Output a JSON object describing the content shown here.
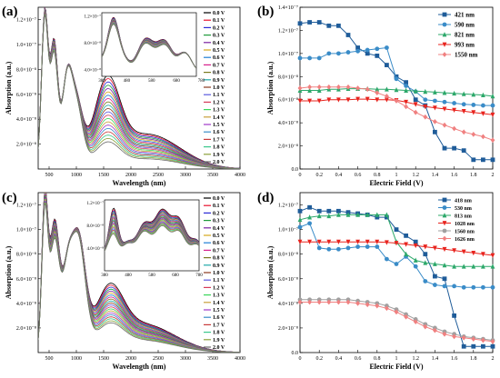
{
  "figure": {
    "panel_letters": [
      "(a)",
      "(b)",
      "(c)",
      "(d)"
    ]
  },
  "chart_data": [
    {
      "id": "a",
      "type": "line",
      "panel_letter": "(a)",
      "xlabel": "Wavelength (nm)",
      "ylabel": "Absorption (a.u.)",
      "xlim": [
        300,
        4000
      ],
      "ylim": [
        0,
        1.3e-07
      ],
      "xticks": [
        500,
        1000,
        1500,
        2000,
        2500,
        3000,
        3500,
        4000
      ],
      "yticks": [
        {
          "v": 2e-08,
          "label": "2.0×10⁻⁸"
        },
        {
          "v": 4e-08,
          "label": "4.0×10⁻⁸"
        },
        {
          "v": 6e-08,
          "label": "6.0×10⁻⁸"
        },
        {
          "v": 8e-08,
          "label": "8.0×10⁻⁸"
        },
        {
          "v": 1e-07,
          "label": "1.0×10⁻⁷"
        },
        {
          "v": 1.2e-07,
          "label": "1.2×10⁻⁷"
        }
      ],
      "legend": [
        "0.0 V",
        "0.1 V",
        "0.2 V",
        "0.3 V",
        "0.4 V",
        "0.5 V",
        "0.6 V",
        "0.7 V",
        "0.8 V",
        "0.9 V",
        "1.0 V",
        "1.1 V",
        "1.2 V",
        "1.3 V",
        "1.4 V",
        "1.5 V",
        "1.6 V",
        "1.7 V",
        "1.8 V",
        "1.9 V",
        "2.0 V"
      ],
      "legend_position": "right",
      "colors": [
        "#000000",
        "#e8112d",
        "#2b2bd6",
        "#1f9a3a",
        "#7a1fa2",
        "#d6a81c",
        "#1f7fd6",
        "#d61f8c",
        "#7a7a1f",
        "#1fa8a8",
        "#8c3a1f",
        "#5a5ae0",
        "#d63a5a",
        "#3ad65a",
        "#c8a03a",
        "#a03ac8",
        "#3a8cc8",
        "#c83a3a",
        "#3ac88c",
        "#8ca03a",
        "#6a6a6a"
      ],
      "peak_start": 6.2e-08,
      "peak_end": 1.8e-08,
      "inset": {
        "xlim": [
          380,
          760
        ],
        "ylim": [
          3e-08,
          1.25e-07
        ],
        "xticks": [
          380,
          480,
          580,
          680,
          780
        ],
        "yticks": [
          {
            "v": 4e-08,
            "label": "4.0×10⁻⁸"
          },
          {
            "v": 8e-08,
            "label": "8.0×10⁻⁸"
          },
          {
            "v": 1.2e-07,
            "label": "1.2×10⁻⁷"
          }
        ]
      }
    },
    {
      "id": "b",
      "type": "line",
      "panel_letter": "(b)",
      "xlabel": "Electric Field (V)",
      "ylabel": "Absorption (a.u.)",
      "xlim": [
        0,
        2.0
      ],
      "ylim": [
        0,
        1.4e-07
      ],
      "xticks": [
        0,
        0.2,
        0.4,
        0.6,
        0.8,
        1.0,
        1.2,
        1.4,
        1.6,
        1.8,
        2.0
      ],
      "yticks": [
        {
          "v": 0,
          "label": "0.0"
        },
        {
          "v": 2e-08,
          "label": "2.0×10⁻⁸"
        },
        {
          "v": 4e-08,
          "label": "4.0×10⁻⁸"
        },
        {
          "v": 6e-08,
          "label": "6.0×10⁻⁸"
        },
        {
          "v": 8e-08,
          "label": "8.0×10⁻⁸"
        },
        {
          "v": 1e-07,
          "label": "1.0×10⁻⁷"
        },
        {
          "v": 1.2e-07,
          "label": "1.2×10⁻⁷"
        },
        {
          "v": 1.4e-07,
          "label": "1.4×10⁻⁷"
        }
      ],
      "legend_position": "top-right",
      "x": [
        0,
        0.1,
        0.2,
        0.3,
        0.4,
        0.5,
        0.6,
        0.7,
        0.8,
        0.9,
        1.0,
        1.1,
        1.2,
        1.3,
        1.4,
        1.5,
        1.6,
        1.7,
        1.8,
        1.9,
        2.0
      ],
      "series": [
        {
          "name": "421 nm",
          "color": "#1f5c99",
          "marker": "square",
          "values": [
            1.26e-07,
            1.27e-07,
            1.27e-07,
            1.24e-07,
            1.24e-07,
            1.16e-07,
            1.05e-07,
            1e-07,
            9.8e-08,
            9e-08,
            8e-08,
            7.5e-08,
            6e-08,
            5.5e-08,
            3.2e-08,
            1.8e-08,
            1.8e-08,
            1.6e-08,
            8e-09,
            8e-09,
            8e-09
          ]
        },
        {
          "name": "590 nm",
          "color": "#3a8cc8",
          "marker": "circle",
          "values": [
            9.6e-08,
            9.6e-08,
            9.6e-08,
            1e-07,
            1e-07,
            1.01e-07,
            1.02e-07,
            1.03e-07,
            1.04e-07,
            1.05e-07,
            7.8e-08,
            7.2e-08,
            6.7e-08,
            6e-08,
            5.9e-08,
            5.8e-08,
            5.7e-08,
            5.6e-08,
            5.55e-08,
            5.5e-08,
            5.5e-08
          ]
        },
        {
          "name": "821 nm",
          "color": "#2ca86a",
          "marker": "triangle-up",
          "values": [
            6.8e-08,
            6.8e-08,
            6.8e-08,
            6.9e-08,
            6.9e-08,
            6.95e-08,
            6.95e-08,
            6.95e-08,
            6.9e-08,
            6.9e-08,
            6.85e-08,
            6.8e-08,
            6.75e-08,
            6.7e-08,
            6.65e-08,
            6.6e-08,
            6.55e-08,
            6.5e-08,
            6.45e-08,
            6.4e-08,
            6.3e-08
          ]
        },
        {
          "name": "993 nm",
          "color": "#e8231d",
          "marker": "triangle-down",
          "values": [
            5.9e-08,
            5.9e-08,
            5.9e-08,
            6e-08,
            6e-08,
            6e-08,
            6.05e-08,
            6.05e-08,
            6e-08,
            6e-08,
            5.95e-08,
            5.8e-08,
            5.6e-08,
            5.4e-08,
            5.3e-08,
            5.2e-08,
            5.1e-08,
            5e-08,
            4.9e-08,
            4.8e-08,
            4.7e-08
          ]
        },
        {
          "name": "1550 nm",
          "color": "#f08080",
          "marker": "diamond",
          "values": [
            7e-08,
            7.1e-08,
            7.1e-08,
            7.1e-08,
            7.1e-08,
            7.1e-08,
            7e-08,
            6.9e-08,
            6.6e-08,
            6.3e-08,
            5.9e-08,
            5.4e-08,
            4.9e-08,
            4.5e-08,
            4.1e-08,
            3.8e-08,
            3.5e-08,
            3.2e-08,
            3e-08,
            2.8e-08,
            2.5e-08
          ]
        }
      ]
    },
    {
      "id": "c",
      "type": "line",
      "panel_letter": "(c)",
      "xlabel": "Wavelength (nm)",
      "ylabel": "Absorption (a.u.)",
      "xlim": [
        300,
        4000
      ],
      "ylim": [
        0,
        1.3e-07
      ],
      "xticks": [
        500,
        1000,
        1500,
        2000,
        2500,
        3000,
        3500,
        4000
      ],
      "yticks": [
        {
          "v": 2e-08,
          "label": "2.0×10⁻⁸"
        },
        {
          "v": 4e-08,
          "label": "4.0×10⁻⁸"
        },
        {
          "v": 6e-08,
          "label": "6.0×10⁻⁸"
        },
        {
          "v": 8e-08,
          "label": "8.0×10⁻⁸"
        },
        {
          "v": 1e-07,
          "label": "1.0×10⁻⁷"
        },
        {
          "v": 1.2e-07,
          "label": "1.2×10⁻⁷"
        }
      ],
      "legend": [
        "0.0 V",
        "0.1 V",
        "0.2 V",
        "0.3 V",
        "0.4 V",
        "0.5 V",
        "0.6 V",
        "0.7 V",
        "0.8 V",
        "0.9 V",
        "1.0 V",
        "1.1 V",
        "1.2 V",
        "1.3 V",
        "1.4 V",
        "1.5 V",
        "1.6 V",
        "1.7 V",
        "1.8 V",
        "1.9 V",
        "2.0 V"
      ],
      "legend_position": "right",
      "colors": [
        "#000000",
        "#e8112d",
        "#2b2bd6",
        "#1f9a3a",
        "#7a1fa2",
        "#d6a81c",
        "#1f7fd6",
        "#d61f8c",
        "#7a7a1f",
        "#1fa8a8",
        "#8c3a1f",
        "#5a5ae0",
        "#d63a5a",
        "#3ad65a",
        "#c8a03a",
        "#a03ac8",
        "#3a8cc8",
        "#c83a3a",
        "#3ac88c",
        "#8ca03a",
        "#6a6a6a"
      ],
      "peak_start": 4.2e-08,
      "peak_end": 1.8e-08,
      "inset": {
        "xlim": [
          380,
          780
        ],
        "ylim": [
          0.0,
          1.25e-07
        ],
        "xticks": [
          380,
          480,
          580,
          680,
          780
        ],
        "yticks": [
          {
            "v": 4e-08,
            "label": "4.0×10⁻⁸"
          },
          {
            "v": 8e-08,
            "label": "8.0×10⁻⁸"
          },
          {
            "v": 1.2e-07,
            "label": "1.2×10⁻⁷"
          }
        ]
      }
    },
    {
      "id": "d",
      "type": "line",
      "panel_letter": "(d)",
      "xlabel": "Electric Field (V)",
      "ylabel": "Absorption (a.u.)",
      "xlim": [
        0,
        2.0
      ],
      "ylim": [
        0,
        1.3e-07
      ],
      "xticks": [
        0,
        0.2,
        0.4,
        0.6,
        0.8,
        1.0,
        1.2,
        1.4,
        1.6,
        1.8,
        2.0
      ],
      "yticks": [
        {
          "v": 0,
          "label": "0.0"
        },
        {
          "v": 2e-08,
          "label": "2.0×10⁻⁸"
        },
        {
          "v": 4e-08,
          "label": "4.0×10⁻⁸"
        },
        {
          "v": 6e-08,
          "label": "6.0×10⁻⁸"
        },
        {
          "v": 8e-08,
          "label": "8.0×10⁻⁸"
        },
        {
          "v": 1e-07,
          "label": "1.0×10⁻⁷"
        },
        {
          "v": 1.2e-07,
          "label": "1.2×10⁻⁷"
        }
      ],
      "legend_position": "top-right",
      "x": [
        0,
        0.1,
        0.2,
        0.3,
        0.4,
        0.5,
        0.6,
        0.7,
        0.8,
        0.9,
        1.0,
        1.1,
        1.2,
        1.3,
        1.4,
        1.5,
        1.6,
        1.7,
        1.8,
        1.9,
        2.0
      ],
      "series": [
        {
          "name": "418 nm",
          "color": "#1f5c99",
          "marker": "square",
          "values": [
            1.15e-07,
            1.18e-07,
            1.15e-07,
            1.15e-07,
            1.15e-07,
            1.14e-07,
            1.13e-07,
            1.12e-07,
            1.1e-07,
            1.1e-07,
            1e-07,
            9.5e-08,
            9e-08,
            8e-08,
            6.2e-08,
            6e-08,
            3e-08,
            5e-09,
            5e-09,
            5e-09,
            5e-09
          ]
        },
        {
          "name": "530 nm",
          "color": "#3a8cc8",
          "marker": "circle",
          "values": [
            1.02e-07,
            1.05e-07,
            8.5e-08,
            8.4e-08,
            8.4e-08,
            8.5e-08,
            8.6e-08,
            8.6e-08,
            8.6e-08,
            7.6e-08,
            7.2e-08,
            7.8e-08,
            7e-08,
            5.8e-08,
            5.5e-08,
            5.4e-08,
            5.4e-08,
            5.3e-08,
            5.3e-08,
            5.3e-08,
            5.3e-08
          ]
        },
        {
          "name": "813 nm",
          "color": "#2ca86a",
          "marker": "triangle-up",
          "values": [
            1.08e-07,
            1.1e-07,
            1.11e-07,
            1.11e-07,
            1.12e-07,
            1.12e-07,
            1.12e-07,
            1.12e-07,
            1.12e-07,
            1.12e-07,
            9e-08,
            8e-08,
            7.5e-08,
            7.3e-08,
            7.2e-08,
            7.1e-08,
            7e-08,
            7e-08,
            7e-08,
            7e-08,
            7e-08
          ]
        },
        {
          "name": "1028 nm",
          "color": "#e8231d",
          "marker": "triangle-down",
          "values": [
            9e-08,
            9e-08,
            9e-08,
            9e-08,
            9e-08,
            9e-08,
            9e-08,
            9e-08,
            9e-08,
            8.95e-08,
            8.9e-08,
            8.8e-08,
            8.7e-08,
            8.6e-08,
            8.5e-08,
            8.4e-08,
            8.3e-08,
            8.2e-08,
            8.1e-08,
            8e-08,
            7.9e-08
          ]
        },
        {
          "name": "1560 nm",
          "color": "#a0a0a0",
          "marker": "circle",
          "values": [
            4.3e-08,
            4.3e-08,
            4.3e-08,
            4.3e-08,
            4.3e-08,
            4.3e-08,
            4.2e-08,
            4.1e-08,
            4e-08,
            3.8e-08,
            3.5e-08,
            3.1e-08,
            2.7e-08,
            2.3e-08,
            2e-08,
            1.7e-08,
            1.5e-08,
            1.3e-08,
            1.2e-08,
            1.1e-08,
            1e-08
          ]
        },
        {
          "name": "1626 nm",
          "color": "#f08080",
          "marker": "diamond",
          "values": [
            4.1e-08,
            4.1e-08,
            4.1e-08,
            4.1e-08,
            4.1e-08,
            4.1e-08,
            4e-08,
            3.9e-08,
            3.8e-08,
            3.6e-08,
            3.3e-08,
            2.9e-08,
            2.5e-08,
            2.1e-08,
            1.8e-08,
            1.5e-08,
            1.3e-08,
            1.2e-08,
            1.1e-08,
            1e-08,
            9e-09
          ]
        }
      ]
    }
  ]
}
